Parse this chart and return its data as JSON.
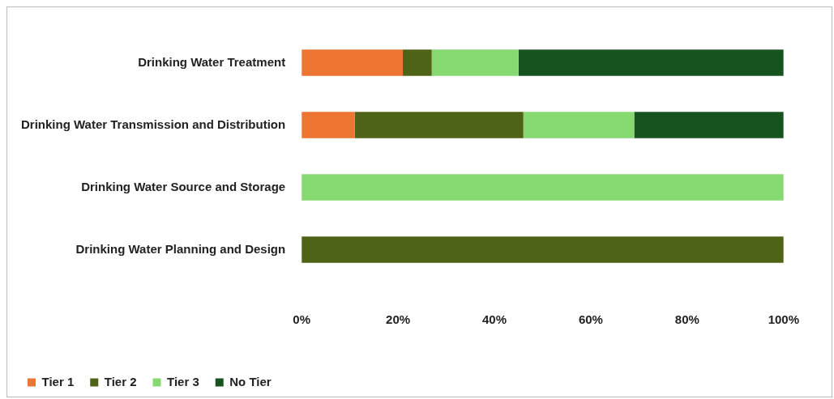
{
  "chart_data": {
    "type": "bar",
    "orientation": "horizontal",
    "stacked": true,
    "categories": [
      "Drinking Water Treatment",
      "Drinking Water Transmission and Distribution",
      "Drinking Water Source and Storage",
      "Drinking Water Planning and Design"
    ],
    "series": [
      {
        "name": "Tier 1",
        "color": "#ee7433",
        "values": [
          21,
          11,
          0,
          0
        ]
      },
      {
        "name": "Tier 2",
        "color": "#4f6317",
        "values": [
          6,
          35,
          0,
          100
        ]
      },
      {
        "name": "Tier 3",
        "color": "#86d870",
        "values": [
          18,
          23,
          100,
          0
        ]
      },
      {
        "name": "No Tier",
        "color": "#17531f",
        "values": [
          55,
          31,
          0,
          0
        ]
      }
    ],
    "xlim": [
      0,
      100
    ],
    "xticks": [
      {
        "value": 0,
        "label": "0%"
      },
      {
        "value": 20,
        "label": "20%"
      },
      {
        "value": 40,
        "label": "40%"
      },
      {
        "value": 60,
        "label": "60%"
      },
      {
        "value": 80,
        "label": "80%"
      },
      {
        "value": 100,
        "label": "100%"
      }
    ],
    "grid": false,
    "legend": "bottom"
  }
}
